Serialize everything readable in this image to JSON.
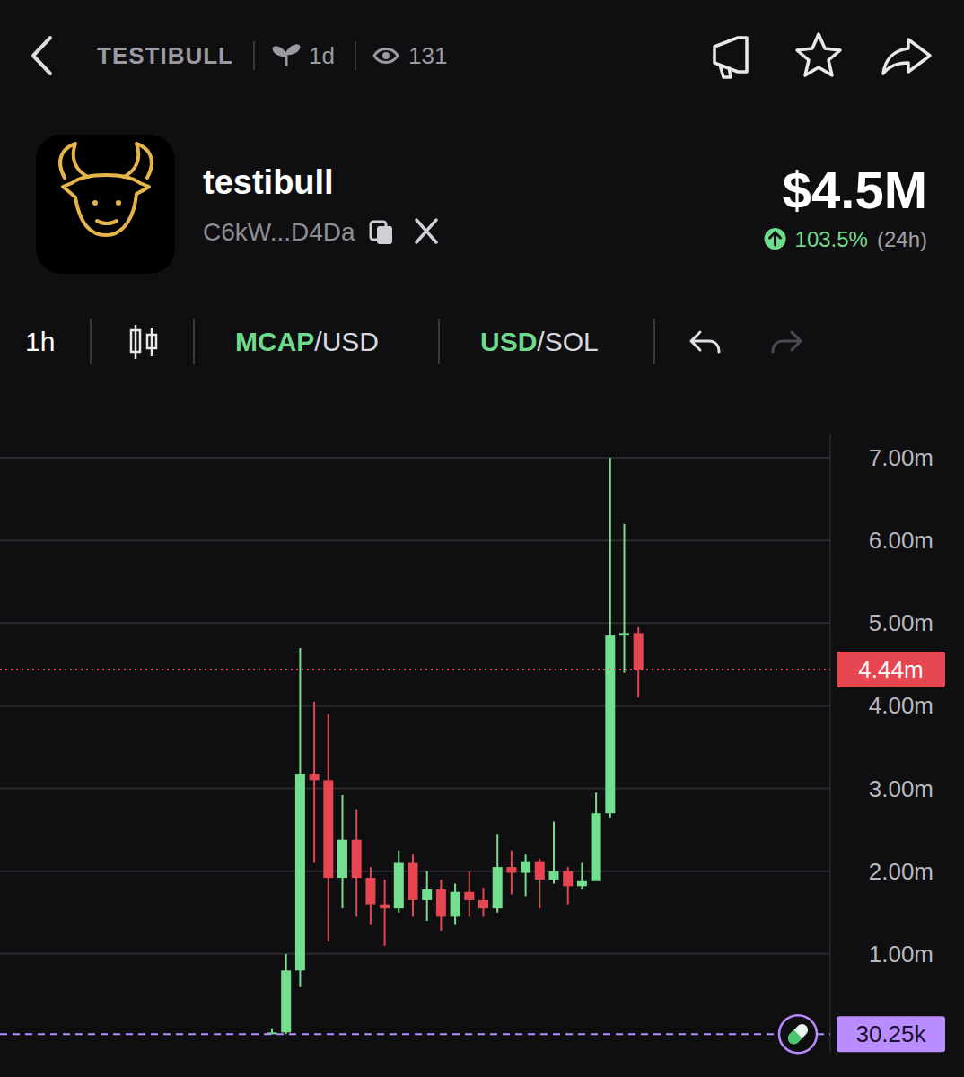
{
  "header": {
    "symbol": "TESTIBULL",
    "age": "1d",
    "views": "131",
    "name": "testibull",
    "address": "C6kW...D4Da",
    "market_cap": "$4.5M",
    "change": "103.5%",
    "change_period": "(24h)"
  },
  "toolbar": {
    "interval": "1h",
    "mcap": "MCAP",
    "mcap_alt": "/USD",
    "usd": "USD",
    "usd_alt": "/SOL"
  },
  "chart_data": {
    "type": "candlestick",
    "categories": [
      null,
      null,
      null,
      null,
      null,
      null,
      null,
      null,
      null,
      null,
      null,
      null,
      null,
      null,
      null,
      null,
      null,
      null,
      null,
      null,
      null,
      null,
      null,
      null,
      null,
      null,
      null
    ],
    "open": [
      0.03,
      0.05,
      0.8,
      3.18,
      3.1,
      1.92,
      2.38,
      1.92,
      1.6,
      1.55,
      2.1,
      1.65,
      1.78,
      1.45,
      1.75,
      1.65,
      1.55,
      2.05,
      1.98,
      2.12,
      1.9,
      2.0,
      1.82,
      1.88,
      2.7,
      4.85,
      4.88
    ],
    "high": [
      0.1,
      1.0,
      4.7,
      4.05,
      3.9,
      2.92,
      2.75,
      2.05,
      1.9,
      2.25,
      2.2,
      2.0,
      1.9,
      1.85,
      2.0,
      1.8,
      2.45,
      2.25,
      2.2,
      2.15,
      2.6,
      2.05,
      2.1,
      2.95,
      7.0,
      6.2,
      4.95
    ],
    "low": [
      0.03,
      0.03,
      0.6,
      2.1,
      1.15,
      1.55,
      1.45,
      1.35,
      1.1,
      1.5,
      1.45,
      1.4,
      1.28,
      1.35,
      1.45,
      1.45,
      1.5,
      1.72,
      1.7,
      1.55,
      1.85,
      1.6,
      1.78,
      1.9,
      2.65,
      4.4,
      4.1
    ],
    "close": [
      0.05,
      0.8,
      3.18,
      3.1,
      1.92,
      2.38,
      1.92,
      1.6,
      1.55,
      2.1,
      1.65,
      1.78,
      1.45,
      1.75,
      1.65,
      1.55,
      2.05,
      1.98,
      2.12,
      1.9,
      2.0,
      1.82,
      1.88,
      2.7,
      4.85,
      4.88,
      4.44
    ],
    "ylim": [
      -0.2,
      7.3
    ],
    "yticks": [
      {
        "value": 1,
        "label": "1.00m"
      },
      {
        "value": 2,
        "label": "2.00m"
      },
      {
        "value": 3,
        "label": "3.00m"
      },
      {
        "value": 4,
        "label": "4.00m"
      },
      {
        "value": 5,
        "label": "5.00m"
      },
      {
        "value": 6,
        "label": "6.00m"
      },
      {
        "value": 7,
        "label": "7.00m"
      }
    ],
    "grid": true,
    "tick_labels": "y",
    "reference_lines": [
      {
        "value": 4.44,
        "label": "4.44m",
        "color": "#e5464f"
      },
      {
        "value": 0.03025,
        "label": "30.25k",
        "color": "#b98cff"
      }
    ]
  }
}
